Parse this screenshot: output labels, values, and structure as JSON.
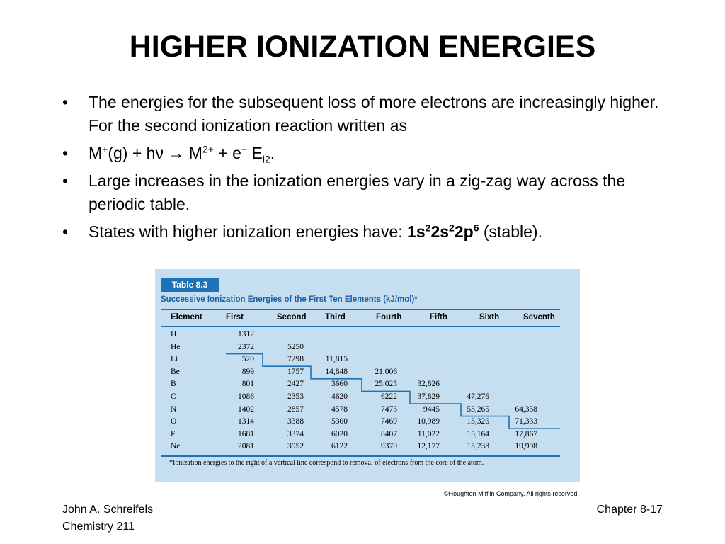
{
  "slide": {
    "title": "HIGHER IONIZATION ENERGIES",
    "bullets": {
      "b1": "The energies for the subsequent loss of more electrons are increasingly higher.  For the second ionization reaction written as",
      "b2_m": "M",
      "b2_plus": "+",
      "b2_a": "(g)  + h",
      "b2_nu": "ν",
      "b2_arrow": " → ",
      "b2_m2": "M",
      "b2_2plus": "2+",
      "b2_b": " + e",
      "b2_minus": "−",
      "b2_e": "  E",
      "b2_sub": "i2",
      "b2_dot": ".",
      "b3": "Large increases in the ionization energies vary in a zig-zag way across the periodic table.",
      "b4_a": "States with higher ionization energies have: ",
      "b4_1s": "1s",
      "b4_2a": "2",
      "b4_2s": "2s",
      "b4_2b": "2",
      "b4_2p": "2p",
      "b4_6": "6",
      "b4_b": " (stable)."
    },
    "bullet_char": "•"
  },
  "table": {
    "label": "Table 8.3",
    "caption": "Successive Ionization Energies of the First Ten Elements (kJ/mol)*",
    "headers": [
      "Element",
      "First",
      "Second",
      "Third",
      "Fourth",
      "Fifth",
      "Sixth",
      "Seventh"
    ],
    "rows": [
      [
        "H",
        "1312",
        "",
        "",
        "",
        "",
        "",
        ""
      ],
      [
        "He",
        "2372",
        "5250",
        "",
        "",
        "",
        "",
        ""
      ],
      [
        "Li",
        "520",
        "7298",
        "11,815",
        "",
        "",
        "",
        ""
      ],
      [
        "Be",
        "899",
        "1757",
        "14,848",
        "21,006",
        "",
        "",
        ""
      ],
      [
        "B",
        "801",
        "2427",
        "3660",
        "25,025",
        "32,826",
        "",
        ""
      ],
      [
        "C",
        "1086",
        "2353",
        "4620",
        "6222",
        "37,829",
        "47,276",
        ""
      ],
      [
        "N",
        "1402",
        "2857",
        "4578",
        "7475",
        "9445",
        "53,265",
        "64,358"
      ],
      [
        "O",
        "1314",
        "3388",
        "5300",
        "7469",
        "10,989",
        "13,326",
        "71,333"
      ],
      [
        "F",
        "1681",
        "3374",
        "6020",
        "8407",
        "11,022",
        "15,164",
        "17,867"
      ],
      [
        "Ne",
        "2081",
        "3952",
        "6122",
        "9370",
        "12,177",
        "15,238",
        "19,998"
      ]
    ],
    "footnote": "*Ionization energies to the right of a vertical line correspond to removal of electrons from the core of the atom."
  },
  "copyright": "©Houghton Mifflin Company. All rights reserved.",
  "footer": {
    "author": "John A. Schreifels",
    "course": "Chemistry 211",
    "chapter": "Chapter 8-17"
  },
  "colors": {
    "table_bg": "#c5dff0",
    "accent": "#1e72b6",
    "caption": "#1a5fa6"
  }
}
